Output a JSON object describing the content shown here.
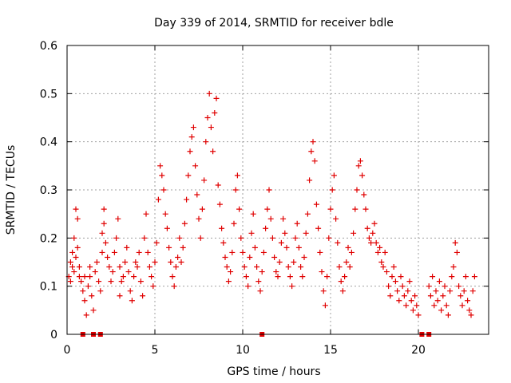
{
  "chart_data": {
    "type": "scatter",
    "title": "Day 339 of 2014, SRMTID for receiver bdle",
    "xlabel": "GPS time / hours",
    "ylabel": "SRMTID / TECUs",
    "xlim": [
      0,
      24
    ],
    "ylim": [
      0,
      0.6
    ],
    "grid": true,
    "xticks": [
      0,
      5,
      10,
      15,
      20
    ],
    "yticks": [
      0,
      0.1,
      0.2,
      0.3,
      0.4,
      0.5,
      0.6
    ],
    "xtick_labels": [
      "0",
      "5",
      "10",
      "15",
      "20"
    ],
    "ytick_labels": [
      "0",
      "0.1",
      "0.2",
      "0.3",
      "0.4",
      "0.5",
      "0.6"
    ],
    "series": [
      {
        "name": "SRMTID",
        "marker": "+",
        "color": "#e00000",
        "points": [
          [
            0.1,
            0.12
          ],
          [
            0.2,
            0.15
          ],
          [
            0.2,
            0.11
          ],
          [
            0.3,
            0.14
          ],
          [
            0.3,
            0.17
          ],
          [
            0.4,
            0.13
          ],
          [
            0.4,
            0.2
          ],
          [
            0.5,
            0.26
          ],
          [
            0.5,
            0.16
          ],
          [
            0.6,
            0.24
          ],
          [
            0.6,
            0.18
          ],
          [
            0.7,
            0.14
          ],
          [
            0.7,
            0.12
          ],
          [
            0.8,
            0.11
          ],
          [
            0.9,
            0.09
          ],
          [
            1.0,
            0.12
          ],
          [
            1.0,
            0.07
          ],
          [
            1.1,
            0.04
          ],
          [
            1.2,
            0.1
          ],
          [
            1.3,
            0.14
          ],
          [
            1.3,
            0.12
          ],
          [
            1.4,
            0.08
          ],
          [
            1.5,
            0.05
          ],
          [
            1.6,
            0.13
          ],
          [
            1.7,
            0.15
          ],
          [
            1.8,
            0.11
          ],
          [
            1.9,
            0.09
          ],
          [
            2.0,
            0.17
          ],
          [
            2.0,
            0.21
          ],
          [
            2.1,
            0.23
          ],
          [
            2.1,
            0.26
          ],
          [
            2.2,
            0.19
          ],
          [
            2.3,
            0.16
          ],
          [
            2.4,
            0.14
          ],
          [
            2.5,
            0.11
          ],
          [
            2.6,
            0.13
          ],
          [
            2.7,
            0.17
          ],
          [
            2.8,
            0.2
          ],
          [
            2.9,
            0.24
          ],
          [
            3.0,
            0.14
          ],
          [
            3.0,
            0.08
          ],
          [
            3.1,
            0.11
          ],
          [
            3.2,
            0.12
          ],
          [
            3.3,
            0.15
          ],
          [
            3.4,
            0.18
          ],
          [
            3.5,
            0.13
          ],
          [
            3.6,
            0.09
          ],
          [
            3.7,
            0.07
          ],
          [
            3.8,
            0.12
          ],
          [
            3.9,
            0.15
          ],
          [
            4.0,
            0.14
          ],
          [
            4.1,
            0.17
          ],
          [
            4.2,
            0.11
          ],
          [
            4.3,
            0.08
          ],
          [
            4.4,
            0.2
          ],
          [
            4.5,
            0.25
          ],
          [
            4.6,
            0.17
          ],
          [
            4.7,
            0.14
          ],
          [
            4.8,
            0.12
          ],
          [
            4.9,
            0.1
          ],
          [
            5.0,
            0.15
          ],
          [
            5.1,
            0.19
          ],
          [
            5.2,
            0.28
          ],
          [
            5.3,
            0.35
          ],
          [
            5.4,
            0.33
          ],
          [
            5.5,
            0.3
          ],
          [
            5.6,
            0.25
          ],
          [
            5.7,
            0.22
          ],
          [
            5.8,
            0.18
          ],
          [
            5.9,
            0.15
          ],
          [
            6.0,
            0.12
          ],
          [
            6.1,
            0.1
          ],
          [
            6.2,
            0.14
          ],
          [
            6.3,
            0.16
          ],
          [
            6.4,
            0.2
          ],
          [
            6.5,
            0.15
          ],
          [
            6.6,
            0.18
          ],
          [
            6.7,
            0.23
          ],
          [
            6.8,
            0.28
          ],
          [
            6.9,
            0.33
          ],
          [
            7.0,
            0.38
          ],
          [
            7.1,
            0.41
          ],
          [
            7.2,
            0.43
          ],
          [
            7.3,
            0.35
          ],
          [
            7.4,
            0.29
          ],
          [
            7.5,
            0.24
          ],
          [
            7.6,
            0.2
          ],
          [
            7.7,
            0.26
          ],
          [
            7.8,
            0.32
          ],
          [
            7.9,
            0.4
          ],
          [
            8.0,
            0.45
          ],
          [
            8.1,
            0.5
          ],
          [
            8.2,
            0.43
          ],
          [
            8.3,
            0.38
          ],
          [
            8.4,
            0.46
          ],
          [
            8.5,
            0.49
          ],
          [
            8.6,
            0.31
          ],
          [
            8.7,
            0.27
          ],
          [
            8.8,
            0.22
          ],
          [
            8.9,
            0.19
          ],
          [
            9.0,
            0.16
          ],
          [
            9.1,
            0.14
          ],
          [
            9.2,
            0.11
          ],
          [
            9.3,
            0.13
          ],
          [
            9.4,
            0.17
          ],
          [
            9.5,
            0.23
          ],
          [
            9.6,
            0.3
          ],
          [
            9.7,
            0.33
          ],
          [
            9.8,
            0.26
          ],
          [
            9.9,
            0.2
          ],
          [
            10.0,
            0.17
          ],
          [
            10.1,
            0.14
          ],
          [
            10.2,
            0.12
          ],
          [
            10.3,
            0.1
          ],
          [
            10.4,
            0.16
          ],
          [
            10.5,
            0.21
          ],
          [
            10.6,
            0.25
          ],
          [
            10.7,
            0.18
          ],
          [
            10.8,
            0.14
          ],
          [
            10.9,
            0.11
          ],
          [
            11.0,
            0.09
          ],
          [
            11.1,
            0.13
          ],
          [
            11.2,
            0.17
          ],
          [
            11.3,
            0.22
          ],
          [
            11.4,
            0.26
          ],
          [
            11.5,
            0.3
          ],
          [
            11.6,
            0.24
          ],
          [
            11.7,
            0.2
          ],
          [
            11.8,
            0.16
          ],
          [
            11.9,
            0.13
          ],
          [
            12.0,
            0.12
          ],
          [
            12.1,
            0.15
          ],
          [
            12.2,
            0.19
          ],
          [
            12.3,
            0.24
          ],
          [
            12.4,
            0.21
          ],
          [
            12.5,
            0.18
          ],
          [
            12.6,
            0.14
          ],
          [
            12.7,
            0.12
          ],
          [
            12.8,
            0.1
          ],
          [
            12.9,
            0.15
          ],
          [
            13.0,
            0.2
          ],
          [
            13.1,
            0.23
          ],
          [
            13.2,
            0.18
          ],
          [
            13.3,
            0.14
          ],
          [
            13.4,
            0.12
          ],
          [
            13.5,
            0.16
          ],
          [
            13.6,
            0.21
          ],
          [
            13.7,
            0.25
          ],
          [
            13.8,
            0.32
          ],
          [
            13.9,
            0.38
          ],
          [
            14.0,
            0.4
          ],
          [
            14.1,
            0.36
          ],
          [
            14.2,
            0.27
          ],
          [
            14.3,
            0.22
          ],
          [
            14.4,
            0.17
          ],
          [
            14.5,
            0.13
          ],
          [
            14.6,
            0.09
          ],
          [
            14.7,
            0.06
          ],
          [
            14.8,
            0.12
          ],
          [
            14.9,
            0.2
          ],
          [
            15.0,
            0.26
          ],
          [
            15.1,
            0.3
          ],
          [
            15.2,
            0.33
          ],
          [
            15.3,
            0.24
          ],
          [
            15.4,
            0.19
          ],
          [
            15.5,
            0.14
          ],
          [
            15.6,
            0.11
          ],
          [
            15.7,
            0.09
          ],
          [
            15.8,
            0.12
          ],
          [
            15.9,
            0.15
          ],
          [
            16.0,
            0.18
          ],
          [
            16.1,
            0.14
          ],
          [
            16.2,
            0.17
          ],
          [
            16.3,
            0.21
          ],
          [
            16.4,
            0.26
          ],
          [
            16.5,
            0.3
          ],
          [
            16.6,
            0.35
          ],
          [
            16.7,
            0.36
          ],
          [
            16.8,
            0.33
          ],
          [
            16.9,
            0.29
          ],
          [
            17.0,
            0.26
          ],
          [
            17.1,
            0.22
          ],
          [
            17.2,
            0.2
          ],
          [
            17.3,
            0.19
          ],
          [
            17.4,
            0.21
          ],
          [
            17.5,
            0.23
          ],
          [
            17.6,
            0.19
          ],
          [
            17.7,
            0.17
          ],
          [
            17.8,
            0.18
          ],
          [
            17.9,
            0.15
          ],
          [
            18.0,
            0.14
          ],
          [
            18.1,
            0.17
          ],
          [
            18.2,
            0.13
          ],
          [
            18.3,
            0.1
          ],
          [
            18.4,
            0.08
          ],
          [
            18.5,
            0.12
          ],
          [
            18.6,
            0.14
          ],
          [
            18.7,
            0.11
          ],
          [
            18.8,
            0.09
          ],
          [
            18.9,
            0.07
          ],
          [
            19.0,
            0.12
          ],
          [
            19.1,
            0.1
          ],
          [
            19.2,
            0.08
          ],
          [
            19.3,
            0.06
          ],
          [
            19.4,
            0.09
          ],
          [
            19.5,
            0.11
          ],
          [
            19.6,
            0.07
          ],
          [
            19.7,
            0.05
          ],
          [
            19.8,
            0.08
          ],
          [
            19.9,
            0.06
          ],
          [
            20.0,
            0.04
          ],
          [
            20.6,
            0.1
          ],
          [
            20.7,
            0.08
          ],
          [
            20.8,
            0.12
          ],
          [
            20.9,
            0.06
          ],
          [
            21.0,
            0.09
          ],
          [
            21.1,
            0.07
          ],
          [
            21.2,
            0.11
          ],
          [
            21.3,
            0.05
          ],
          [
            21.4,
            0.08
          ],
          [
            21.5,
            0.1
          ],
          [
            21.6,
            0.06
          ],
          [
            21.7,
            0.04
          ],
          [
            21.8,
            0.09
          ],
          [
            21.9,
            0.12
          ],
          [
            22.0,
            0.14
          ],
          [
            22.1,
            0.19
          ],
          [
            22.2,
            0.17
          ],
          [
            22.3,
            0.1
          ],
          [
            22.4,
            0.08
          ],
          [
            22.5,
            0.06
          ],
          [
            22.6,
            0.09
          ],
          [
            22.7,
            0.12
          ],
          [
            22.8,
            0.07
          ],
          [
            22.9,
            0.05
          ],
          [
            23.0,
            0.04
          ],
          [
            23.1,
            0.09
          ],
          [
            23.2,
            0.12
          ]
        ]
      }
    ],
    "zero_markers": {
      "name": "data gaps",
      "marker": "square",
      "x": [
        0.9,
        1.5,
        1.9,
        11.1,
        20.2,
        20.6
      ]
    }
  }
}
